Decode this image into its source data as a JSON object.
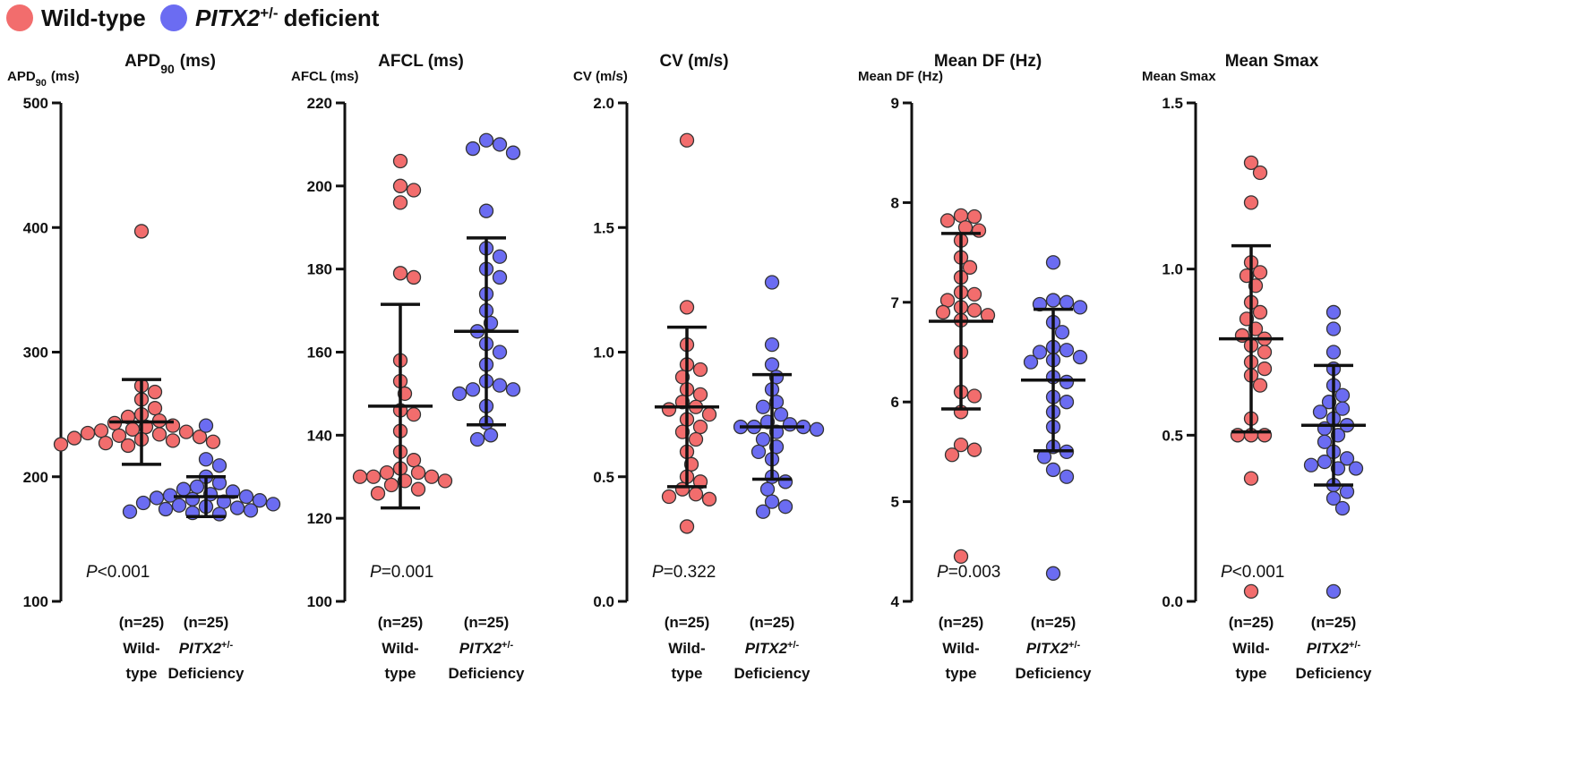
{
  "legend": [
    {
      "name": "Wild-type",
      "color": "#f26d6d"
    },
    {
      "name": "PITX2",
      "superscript": "+/-",
      "suffix": "deficient",
      "color": "#6b6cf2"
    }
  ],
  "chart_data": [
    {
      "type": "dotplot",
      "title": "APD",
      "title_subscript": "90",
      "title_suffix": "(ms)",
      "ylabel": "APD",
      "ylabel_subscript": "90",
      "ylabel_suffix": "(ms)",
      "ylim": [
        100,
        500
      ],
      "yticks": [
        100,
        200,
        300,
        400,
        500
      ],
      "groups": [
        {
          "n": "(n=25)",
          "line1": "Wild-",
          "line2": "type"
        },
        {
          "n": "(n=25)",
          "line1": "PITX2",
          "line1_superscript": "+/-",
          "line2": "Deficiency"
        }
      ],
      "series": [
        {
          "name": "Wild-type",
          "color": "#f26d6d",
          "mean": 244,
          "sd": 34,
          "values": [
            397,
            273,
            268,
            262,
            255,
            250,
            248,
            245,
            243,
            241,
            240,
            238,
            237,
            236,
            235,
            234,
            233,
            232,
            231,
            230,
            229,
            228,
            227,
            226,
            225
          ]
        },
        {
          "name": "PITX2 deficient",
          "color": "#6b6cf2",
          "mean": 184,
          "sd": 16,
          "values": [
            241,
            214,
            209,
            200,
            195,
            192,
            190,
            188,
            186,
            185,
            184,
            183,
            182,
            181,
            180,
            179,
            178,
            177,
            176,
            175,
            174,
            173,
            172,
            171,
            170
          ]
        }
      ],
      "p_label": "P",
      "p_value": "<0.001"
    },
    {
      "type": "dotplot",
      "title": "AFCL (ms)",
      "ylabel": "AFCL (ms)",
      "ylim": [
        100,
        220
      ],
      "yticks": [
        100,
        120,
        140,
        160,
        180,
        200,
        220
      ],
      "groups": [
        {
          "n": "(n=25)",
          "line1": "Wild-",
          "line2": "type"
        },
        {
          "n": "(n=25)",
          "line1": "PITX2",
          "line1_superscript": "+/-",
          "line2": "Deficiency"
        }
      ],
      "series": [
        {
          "name": "Wild-type",
          "color": "#f26d6d",
          "mean": 147,
          "sd": 24.5,
          "values": [
            206,
            200,
            199,
            196,
            179,
            178,
            158,
            153,
            150,
            146,
            145,
            141,
            136,
            134,
            132,
            131,
            131,
            130,
            130,
            130,
            129,
            129,
            128,
            127,
            126
          ]
        },
        {
          "name": "PITX2 deficient",
          "color": "#6b6cf2",
          "mean": 165,
          "sd": 22.5,
          "values": [
            211,
            210,
            209,
            208,
            194,
            185,
            183,
            180,
            178,
            174,
            170,
            167,
            165,
            162,
            160,
            157,
            153,
            152,
            151,
            151,
            150,
            147,
            143,
            140,
            139
          ]
        }
      ],
      "p_label": "P",
      "p_value": "=0.001"
    },
    {
      "type": "dotplot",
      "title": "CV (m/s)",
      "ylabel": "CV (m/s)",
      "ylim": [
        0,
        2
      ],
      "yticks": [
        {
          "value": 0,
          "label": "0.0"
        },
        0.5,
        {
          "value": 1,
          "label": "1.0"
        },
        1.5,
        {
          "value": 2,
          "label": "2.0"
        }
      ],
      "groups": [
        {
          "n": "(n=25)",
          "line1": "Wild-",
          "line2": "type"
        },
        {
          "n": "(n=25)",
          "line1": "PITX2",
          "line1_superscript": "+/-",
          "line2": "Deficiency"
        }
      ],
      "series": [
        {
          "name": "Wild-type",
          "color": "#f26d6d",
          "mean": 0.78,
          "sd": 0.32,
          "values": [
            1.85,
            1.18,
            1.03,
            0.95,
            0.93,
            0.9,
            0.85,
            0.83,
            0.8,
            0.78,
            0.77,
            0.75,
            0.73,
            0.7,
            0.68,
            0.65,
            0.6,
            0.55,
            0.5,
            0.48,
            0.45,
            0.43,
            0.42,
            0.41,
            0.3
          ]
        },
        {
          "name": "PITX2 deficient",
          "color": "#6b6cf2",
          "mean": 0.7,
          "sd": 0.21,
          "values": [
            1.28,
            1.03,
            0.95,
            0.9,
            0.85,
            0.8,
            0.78,
            0.75,
            0.72,
            0.71,
            0.7,
            0.7,
            0.7,
            0.69,
            0.68,
            0.65,
            0.62,
            0.6,
            0.57,
            0.5,
            0.48,
            0.45,
            0.4,
            0.38,
            0.36
          ]
        }
      ],
      "p_label": "P",
      "p_value": "=0.322"
    },
    {
      "type": "dotplot",
      "title": "Mean DF (Hz)",
      "ylabel": "Mean DF (Hz)",
      "ylim": [
        4,
        9
      ],
      "yticks": [
        4,
        5,
        6,
        7,
        8,
        9
      ],
      "groups": [
        {
          "n": "(n=25)",
          "line1": "Wild-",
          "line2": "type"
        },
        {
          "n": "(n=25)",
          "line1": "PITX2",
          "line1_superscript": "+/-",
          "line2": "Deficiency"
        }
      ],
      "series": [
        {
          "name": "Wild-type",
          "color": "#f26d6d",
          "mean": 6.81,
          "sd": 0.88,
          "values": [
            7.87,
            7.86,
            7.82,
            7.75,
            7.72,
            7.62,
            7.45,
            7.35,
            7.25,
            7.1,
            7.08,
            7.02,
            6.95,
            6.92,
            6.9,
            6.87,
            6.82,
            6.5,
            6.1,
            6.06,
            5.9,
            5.57,
            5.52,
            5.47,
            4.45
          ]
        },
        {
          "name": "PITX2 deficient",
          "color": "#6b6cf2",
          "mean": 6.22,
          "sd": 0.71,
          "values": [
            7.4,
            7.02,
            7.0,
            6.98,
            6.95,
            6.8,
            6.7,
            6.55,
            6.52,
            6.5,
            6.45,
            6.42,
            6.4,
            6.25,
            6.2,
            6.05,
            6.0,
            5.9,
            5.75,
            5.55,
            5.5,
            5.45,
            5.32,
            5.25,
            4.28
          ]
        }
      ],
      "p_label": "P",
      "p_value": "=0.003"
    },
    {
      "type": "dotplot",
      "title": "Mean Smax",
      "ylabel": "Mean Smax",
      "ylim": [
        0,
        1.5
      ],
      "yticks": [
        {
          "value": 0,
          "label": "0.0"
        },
        0.5,
        {
          "value": 1,
          "label": "1.0"
        },
        1.5
      ],
      "groups": [
        {
          "n": "(n=25)",
          "line1": "Wild-",
          "line2": "type"
        },
        {
          "n": "(n=25)",
          "line1": "PITX2",
          "line1_superscript": "+/-",
          "line2": "Deficiency"
        }
      ],
      "series": [
        {
          "name": "Wild-type",
          "color": "#f26d6d",
          "mean": 0.79,
          "sd": 0.28,
          "values": [
            1.32,
            1.29,
            1.2,
            1.02,
            0.99,
            0.98,
            0.95,
            0.9,
            0.87,
            0.85,
            0.82,
            0.8,
            0.79,
            0.77,
            0.75,
            0.72,
            0.7,
            0.68,
            0.65,
            0.55,
            0.5,
            0.5,
            0.5,
            0.37,
            0.03
          ]
        },
        {
          "name": "PITX2 deficient",
          "color": "#6b6cf2",
          "mean": 0.53,
          "sd": 0.18,
          "values": [
            0.87,
            0.82,
            0.75,
            0.7,
            0.65,
            0.62,
            0.6,
            0.58,
            0.57,
            0.55,
            0.53,
            0.52,
            0.5,
            0.48,
            0.45,
            0.43,
            0.42,
            0.41,
            0.4,
            0.4,
            0.35,
            0.33,
            0.31,
            0.28,
            0.03
          ]
        }
      ],
      "p_label": "P",
      "p_value": "<0.001"
    }
  ]
}
